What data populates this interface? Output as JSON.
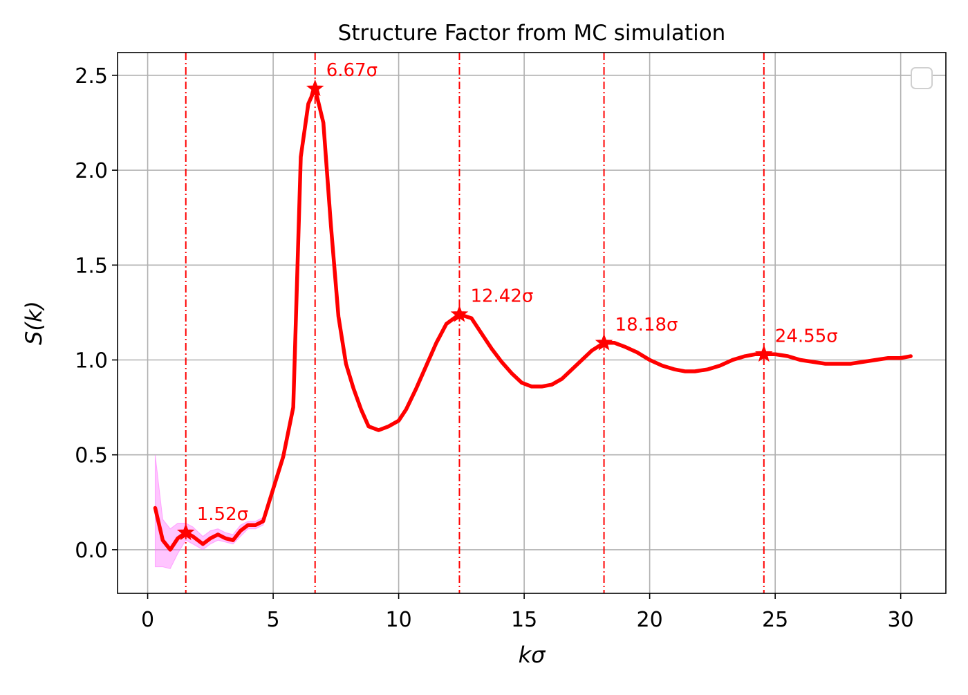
{
  "chart_data": {
    "type": "line",
    "title": "Structure Factor from MC simulation",
    "xlabel": "kσ",
    "ylabel": "S(k)",
    "xlim": [
      -1.2,
      31.8
    ],
    "ylim": [
      -0.23,
      2.62
    ],
    "x_ticks": [
      0,
      5,
      10,
      15,
      20,
      25,
      30
    ],
    "y_ticks": [
      0.0,
      0.5,
      1.0,
      1.5,
      2.0,
      2.5
    ],
    "x_tick_labels": [
      "0",
      "5",
      "10",
      "15",
      "20",
      "25",
      "30"
    ],
    "y_tick_labels": [
      "0.0",
      "0.5",
      "1.0",
      "1.5",
      "2.0",
      "2.5"
    ],
    "grid": true,
    "legend": {
      "placement": "top-right",
      "entries": []
    },
    "colors": {
      "line": "#ff0000",
      "band": "#ff66ff",
      "peaks": "#ff0000",
      "grid": "#b0b0b0"
    },
    "series": [
      {
        "x": [
          0.3,
          0.6,
          0.9,
          1.2,
          1.52,
          1.8,
          2.2,
          2.5,
          2.8,
          3.1,
          3.4,
          3.7,
          4.0,
          4.3,
          4.6,
          5.0,
          5.4,
          5.8,
          6.1,
          6.4,
          6.67,
          7.0,
          7.3,
          7.6,
          7.9,
          8.2,
          8.5,
          8.8,
          9.2,
          9.6,
          10.0,
          10.3,
          10.7,
          11.1,
          11.5,
          11.9,
          12.42,
          12.9,
          13.3,
          13.7,
          14.1,
          14.5,
          14.9,
          15.3,
          15.7,
          16.1,
          16.5,
          16.9,
          17.3,
          17.7,
          18.18,
          18.6,
          19.0,
          19.5,
          20.0,
          20.5,
          21.0,
          21.4,
          21.8,
          22.3,
          22.8,
          23.3,
          23.8,
          24.2,
          24.55,
          25.0,
          25.5,
          26.0,
          26.5,
          27.0,
          27.5,
          28.0,
          28.5,
          29.0,
          29.5,
          30.0,
          30.4
        ],
        "y": [
          0.22,
          0.05,
          0.0,
          0.06,
          0.09,
          0.07,
          0.03,
          0.06,
          0.08,
          0.06,
          0.05,
          0.1,
          0.13,
          0.13,
          0.15,
          0.32,
          0.49,
          0.75,
          2.07,
          2.35,
          2.43,
          2.25,
          1.71,
          1.23,
          0.98,
          0.85,
          0.74,
          0.65,
          0.63,
          0.65,
          0.68,
          0.74,
          0.85,
          0.97,
          1.09,
          1.19,
          1.24,
          1.22,
          1.14,
          1.06,
          0.99,
          0.93,
          0.88,
          0.86,
          0.86,
          0.87,
          0.9,
          0.95,
          1.0,
          1.05,
          1.09,
          1.09,
          1.07,
          1.04,
          1.0,
          0.97,
          0.95,
          0.94,
          0.94,
          0.95,
          0.97,
          1.0,
          1.02,
          1.03,
          1.03,
          1.03,
          1.02,
          1.0,
          0.99,
          0.98,
          0.98,
          0.98,
          0.99,
          1.0,
          1.01,
          1.01,
          1.02
        ],
        "band_x": [
          0.3,
          0.6,
          0.9,
          1.2,
          1.52,
          1.8,
          2.2,
          2.5,
          2.8,
          3.1,
          3.4,
          3.7,
          4.0,
          4.3,
          4.6,
          5.0
        ],
        "band_upper": [
          0.5,
          0.16,
          0.11,
          0.14,
          0.14,
          0.12,
          0.07,
          0.1,
          0.11,
          0.09,
          0.08,
          0.13,
          0.15,
          0.15,
          0.17,
          0.33
        ],
        "band_lower": [
          -0.09,
          -0.09,
          -0.1,
          -0.02,
          0.05,
          0.03,
          0.0,
          0.03,
          0.05,
          0.04,
          0.03,
          0.07,
          0.11,
          0.11,
          0.13,
          0.31
        ]
      }
    ],
    "peaks": [
      {
        "x": 1.52,
        "y": 0.09,
        "label": "1.52σ"
      },
      {
        "x": 6.67,
        "y": 2.43,
        "label": "6.67σ"
      },
      {
        "x": 12.42,
        "y": 1.24,
        "label": "12.42σ"
      },
      {
        "x": 18.18,
        "y": 1.09,
        "label": "18.18σ"
      },
      {
        "x": 24.55,
        "y": 1.03,
        "label": "24.55σ"
      }
    ]
  }
}
